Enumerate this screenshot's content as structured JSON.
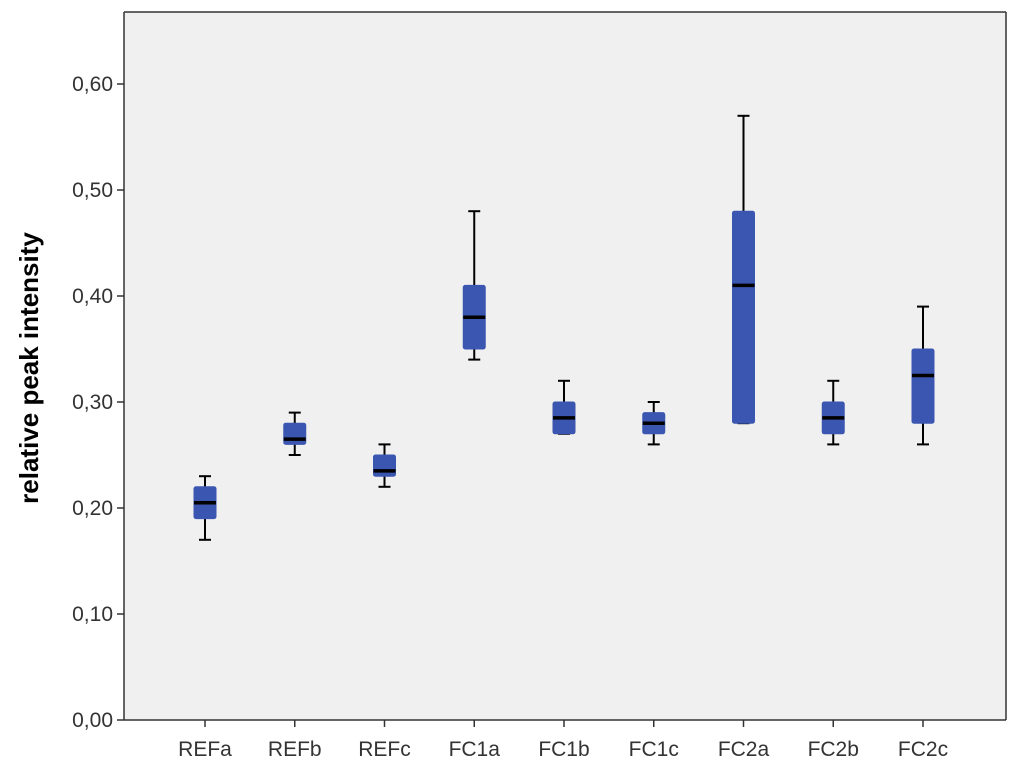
{
  "colors": {
    "plot_background": "#f0f0f0",
    "box_fill": "#3b56b0",
    "median_line": "#000000",
    "whisker": "#000000",
    "axis": "#333333"
  },
  "chart_data": {
    "type": "boxplot",
    "title": "",
    "xlabel": "",
    "ylabel": "relative peak intensity",
    "ylim": [
      0,
      0.64
    ],
    "yticks": [
      "0,00",
      "0,10",
      "0,20",
      "0,30",
      "0,40",
      "0,50",
      "0,60"
    ],
    "ytick_values": [
      0,
      0.1,
      0.2,
      0.3,
      0.4,
      0.5,
      0.6
    ],
    "grid": false,
    "legend": "none",
    "categories": [
      "REFa",
      "REFb",
      "REFc",
      "FC1a",
      "FC1b",
      "FC1c",
      "FC2a",
      "FC2b",
      "FC2c"
    ],
    "boxes": [
      {
        "category": "REFa",
        "min": 0.17,
        "q1": 0.19,
        "median": 0.205,
        "q3": 0.22,
        "max": 0.23
      },
      {
        "category": "REFb",
        "min": 0.25,
        "q1": 0.26,
        "median": 0.265,
        "q3": 0.28,
        "max": 0.29
      },
      {
        "category": "REFc",
        "min": 0.22,
        "q1": 0.23,
        "median": 0.235,
        "q3": 0.25,
        "max": 0.26
      },
      {
        "category": "FC1a",
        "min": 0.34,
        "q1": 0.35,
        "median": 0.38,
        "q3": 0.41,
        "max": 0.48
      },
      {
        "category": "FC1b",
        "min": 0.27,
        "q1": 0.27,
        "median": 0.285,
        "q3": 0.3,
        "max": 0.32
      },
      {
        "category": "FC1c",
        "min": 0.26,
        "q1": 0.27,
        "median": 0.28,
        "q3": 0.29,
        "max": 0.3
      },
      {
        "category": "FC2a",
        "min": 0.28,
        "q1": 0.28,
        "median": 0.41,
        "q3": 0.48,
        "max": 0.57
      },
      {
        "category": "FC2b",
        "min": 0.26,
        "q1": 0.27,
        "median": 0.285,
        "q3": 0.3,
        "max": 0.32
      },
      {
        "category": "FC2c",
        "min": 0.26,
        "q1": 0.28,
        "median": 0.325,
        "q3": 0.35,
        "max": 0.39
      }
    ]
  }
}
